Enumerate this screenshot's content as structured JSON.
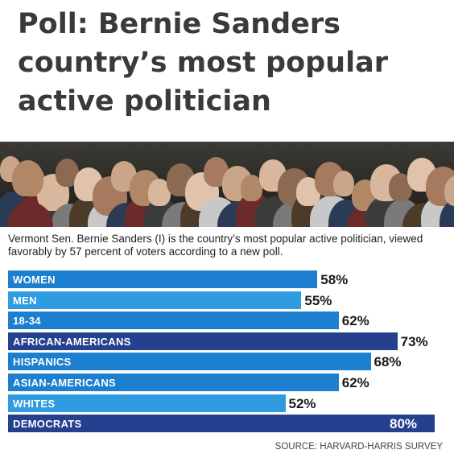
{
  "headline": "Poll: Bernie Sanders country’s most popular active politician",
  "caption": "Vermont Sen. Bernie Sanders (I) is the country’s most popular active politician, viewed favorably by 57 percent of voters according to a new poll.",
  "source": "SOURCE: HARVARD-HARRIS SURVEY",
  "colors": {
    "light": "#2f9be0",
    "medium": "#1d7fcf",
    "dark": "#24408f"
  },
  "chart_data": {
    "type": "bar",
    "orientation": "horizontal",
    "categories": [
      "WOMEN",
      "MEN",
      "18-34",
      "AFRICAN-AMERICANS",
      "HISPANICS",
      "ASIAN-AMERICANS",
      "WHITES",
      "DEMOCRATS"
    ],
    "values": [
      58,
      55,
      62,
      73,
      68,
      62,
      52,
      80
    ],
    "value_labels": [
      "58%",
      "55%",
      "62%",
      "73%",
      "68%",
      "62%",
      "52%",
      "80%"
    ],
    "bar_colors": [
      "#1d7fcf",
      "#2f9be0",
      "#1d7fcf",
      "#24408f",
      "#1d7fcf",
      "#1d7fcf",
      "#2f9be0",
      "#24408f"
    ],
    "xlim": [
      0,
      80
    ]
  }
}
